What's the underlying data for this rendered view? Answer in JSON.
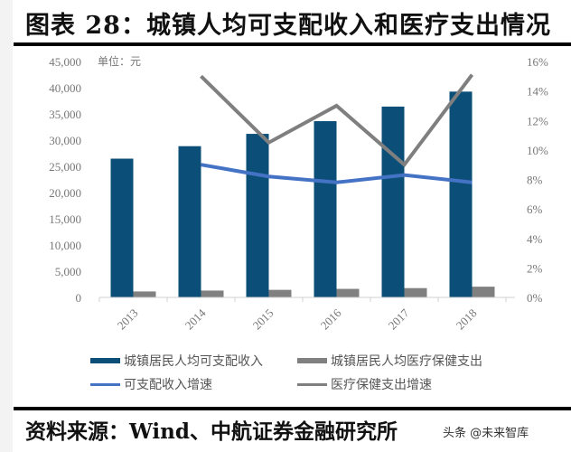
{
  "header": {
    "title": "图表 28：城镇人均可支配收入和医疗支出情况"
  },
  "footer": {
    "source": "资料来源：Wind、中航证券金融研究所",
    "watermark": "头条 @未来智库"
  },
  "chart_data": {
    "type": "bar",
    "title": "图表 28：城镇人均可支配收入和医疗支出情况",
    "unit_label": "单位：元",
    "categories": [
      "2013",
      "2014",
      "2015",
      "2016",
      "2017",
      "2018"
    ],
    "series": [
      {
        "name": "城镇居民人均可支配收入",
        "type": "bar",
        "axis": "left",
        "color": "#0b4f79",
        "values": [
          26467,
          28844,
          31195,
          33616,
          36396,
          39251
        ]
      },
      {
        "name": "城镇居民人均医疗保健支出",
        "type": "bar",
        "axis": "left",
        "color": "#808080",
        "values": [
          1136,
          1306,
          1443,
          1631,
          1777,
          2046
        ]
      },
      {
        "name": "可支配收入增速",
        "type": "line",
        "axis": "right",
        "color": "#4472c4",
        "values": [
          null,
          9.0,
          8.2,
          7.8,
          8.3,
          7.8
        ]
      },
      {
        "name": "医疗保健支出增速",
        "type": "line",
        "axis": "right",
        "color": "#7f7f7f",
        "values": [
          null,
          15.0,
          10.5,
          13.0,
          9.0,
          15.1
        ]
      }
    ],
    "left_axis": {
      "ticks": [
        "0",
        "5,000",
        "10,000",
        "15,000",
        "20,000",
        "25,000",
        "30,000",
        "35,000",
        "40,000",
        "45,000"
      ],
      "ylim": [
        0,
        45000
      ]
    },
    "right_axis": {
      "ticks": [
        "0%",
        "2%",
        "4%",
        "6%",
        "8%",
        "10%",
        "12%",
        "14%",
        "16%"
      ],
      "ylim": [
        0,
        16
      ]
    },
    "xlabel": "",
    "ylabel": "",
    "grid": false,
    "legend_position": "bottom"
  },
  "legend": {
    "items": [
      {
        "label": "城镇居民人均可支配收入",
        "color": "#0b4f79"
      },
      {
        "label": "城镇居民人均医疗保健支出",
        "color": "#808080"
      },
      {
        "label": "可支配收入增速",
        "color": "#4472c4"
      },
      {
        "label": "医疗保健支出增速",
        "color": "#7f7f7f"
      }
    ]
  }
}
